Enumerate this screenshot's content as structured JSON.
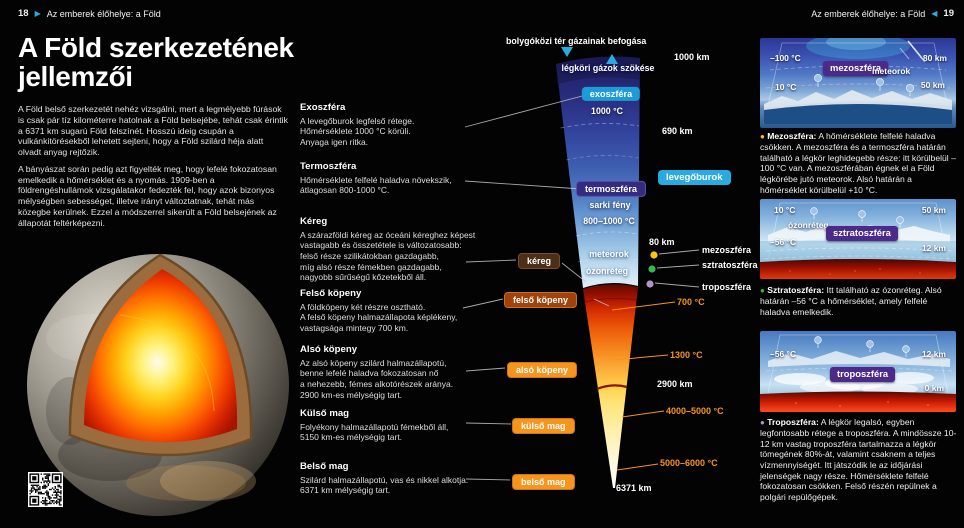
{
  "header_left": {
    "page_number": "18",
    "title": "Az emberek élőhelye: a Föld"
  },
  "header_right": {
    "page_number": "19",
    "title": "Az emberek élőhelye: a Föld"
  },
  "article": {
    "title": "A Föld szerkezetének jellemzői",
    "paragraphs": [
      "A Föld belső szerkezetét nehéz vizsgálni, mert a legmélyebb fúrások is csak pár tíz kilométerre hatolnak a Föld belsejébe, tehát csak érintik a 6371 km sugarú Föld felszínét. Hosszú ideig csupán a vulkánkitörésekből lehetett sejteni, hogy a Föld szilárd héja alatt olvadt anyag rejtőzik.",
      "A bányászat során pedig azt figyelték meg, hogy lefelé fokozatosan emelkedik a hőmérséklet és a nyomás. 1909-ben a földrengéshullámok vizsgálatakor fedezték fel, hogy azok bizonyos mélységben sebességet, illetve irányt változtatnak, tehát más közegbe kerülnek. Ezzel a módszerrel sikerült a Föld belsejének az állapotát feltérképezni."
    ]
  },
  "layers": [
    {
      "heading": "Exoszféra",
      "body": "A levegőburok legfelső rétege.\nHőmérséklete 1000 °C körüli.\nAnyaga igen ritka."
    },
    {
      "heading": "Termoszféra",
      "body": "Hőmérséklete felfelé haladva növekszik,\nátlagosan 800-1000 °C."
    },
    {
      "heading": "Kéreg",
      "body": "A szárazföldi kéreg az óceáni kéreghez képest\nvastagabb és összetétele is változatosabb:\nfelső része szilikátokban gazdagabb,\nmíg alsó része fémekben gazdagabb,\nnagyobb sűrűségű kőzetekből áll."
    },
    {
      "heading": "Felső köpeny",
      "body": "A földköpeny két részre osztható.\nA felső köpeny halmazállapota képlékeny,\nvastagsága mintegy 700 km."
    },
    {
      "heading": "Alsó köpeny",
      "body": "Az alsó köpeny szilárd halmazállapotú,\nbenne lefelé haladva fokozatosan nő\na nehezebb, fémes alkotórészek aránya.\n2900 km-es mélységig tart."
    },
    {
      "heading": "Külső mag",
      "body": "Folyékony halmazállapotú fémekből áll,\n5150 km-es mélységig tart."
    },
    {
      "heading": "Belső mag",
      "body": "Szilárd halmazállapotú, vas és nikkel alkotja.\n6371 km mélységig tart."
    }
  ],
  "diagram": {
    "capture_label": "bolygóközi tér gázainak befogása",
    "escape_label": "légköri gázok szökése",
    "exosphere_badge": "exoszféra",
    "exosphere_temp": "1000 °C",
    "thermosphere_badge": "termoszféra",
    "aurora_label": "sarki fény",
    "thermosphere_temp": "800–1000 °C",
    "meteors_label": "meteorok",
    "ozone_label": "ózonréteg",
    "air_badge": "levegőburok",
    "km_1000": "1000 km",
    "km_690": "690 km",
    "km_80": "80 km",
    "km_2900": "2900 km",
    "km_6371": "6371 km",
    "t_700": "700 °C",
    "t_1300": "1300 °C",
    "t_4000": "4000–5000 °C",
    "t_5000": "5000–6000 °C",
    "badges": {
      "crust": "kéreg",
      "upper_mantle": "felső köpeny",
      "lower_mantle": "alsó köpeny",
      "outer_core": "külső mag",
      "inner_core": "belső mag"
    },
    "legend": [
      {
        "label": "mezoszféra",
        "color": "#ffc20e"
      },
      {
        "label": "sztratoszféra",
        "color": "#39b54a"
      },
      {
        "label": "troposzféra",
        "color": "#b294c7"
      }
    ],
    "accent_colors": {
      "cyan": "#29abe2",
      "orange": "#f7941d"
    }
  },
  "panels": [
    {
      "badge": "mezoszféra",
      "top_left": "–100 °C",
      "top_right": "80 km",
      "extra": "meteorok",
      "bottom_left": "10 °C",
      "bottom_right": "50 km",
      "bullet_color": "#ffc20e",
      "heading": "Mezoszféra:",
      "caption": "A hőmérséklete felfelé haladva csökken. A mezoszféra és a termoszféra határán található a légkör leghidegebb része: itt körülbelül –100 °C van. A mezoszférában égnek el a Föld légkörébe jutó meteorok. Alsó határán a hőmérséklet körülbelül +10 °C."
    },
    {
      "badge": "sztratoszféra",
      "top_left": "10 °C",
      "top_right": "50 km",
      "extra": "ózonréteg",
      "mid_left": "–56 °C",
      "bottom_right": "12 km",
      "bullet_color": "#39b54a",
      "heading": "Sztratoszféra:",
      "caption": "Itt található az ózonréteg. Alsó határán –56 °C a hőmérséklet, amely felfelé haladva emelkedik."
    },
    {
      "badge": "troposzféra",
      "top_left": "–56 °C",
      "top_right": "12 km",
      "bottom_right": "0 km",
      "bullet_color": "#b294c7",
      "heading": "Troposzféra:",
      "caption": "A légkör legalsó, egyben legfontosabb rétege a troposzféra. A mindössze 10-12 km vastag troposzféra tartalmazza a légkör tömegének 80%-át, valamint csaknem a teljes vízmennyiségét. Itt játszódik le az időjárási jelenségek nagy része. Hőmérséklete felfelé fokozatosan csökken. Felső részén repülnek a polgári repülőgépek."
    }
  ]
}
